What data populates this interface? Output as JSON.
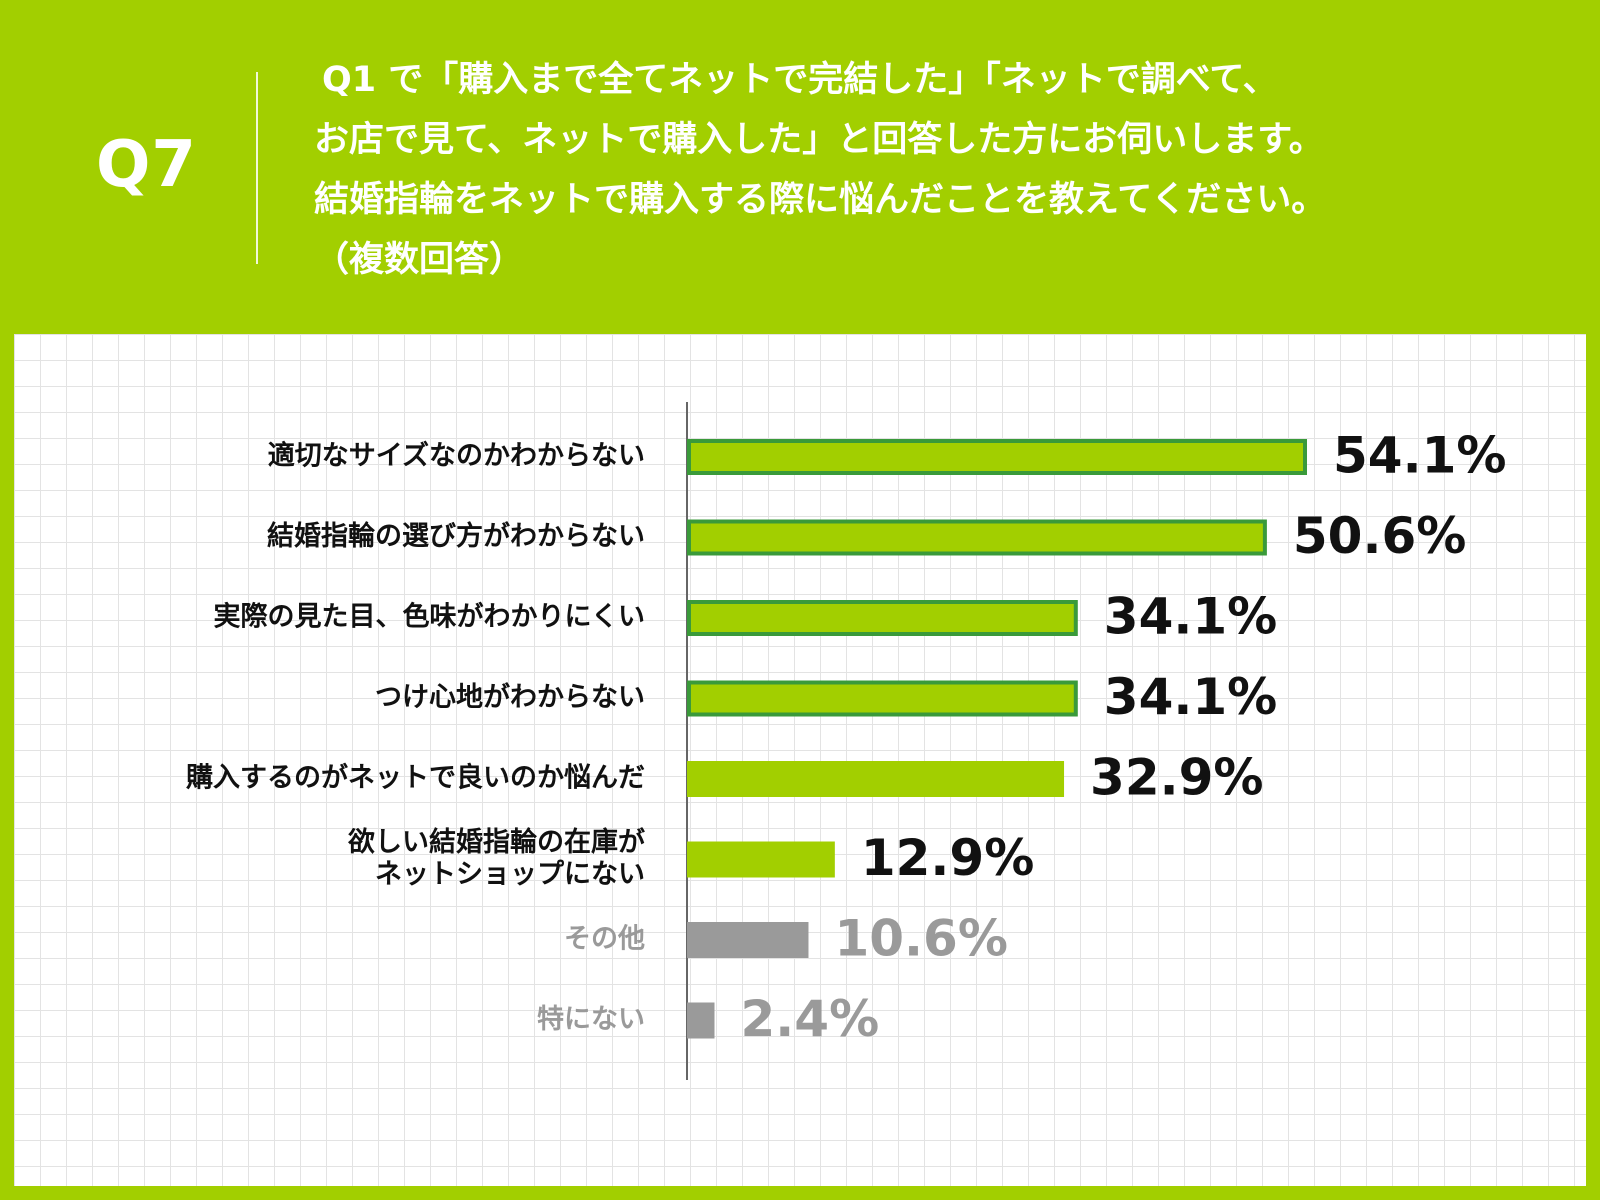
{
  "header": {
    "q_label": "Q7",
    "question_lines": [
      "Q1 で「購入まで全てネットで完結した」「ネットで調べて、",
      "お店で見て、ネットで購入した」と回答した方にお伺いします。",
      "結婚指輪をネットで購入する際に悩んだことを教えてください。",
      "（複数回答）"
    ]
  },
  "colors": {
    "accent": "#a2cf00",
    "bar_border": "#3a9a3a",
    "other": "#9a9a9a",
    "text": "#111111"
  },
  "chart_data": {
    "type": "bar",
    "orientation": "horizontal",
    "unit": "%",
    "xlim": [
      0,
      54.1
    ],
    "categories": [
      [
        "適切なサイズなのかわからない"
      ],
      [
        "結婚指輪の選び方がわからない"
      ],
      [
        "実際の見た目、色味がわかりにくい"
      ],
      [
        "つけ心地がわからない"
      ],
      [
        "購入するのがネットで良いのか悩んだ"
      ],
      [
        "欲しい結婚指輪の在庫が",
        "ネットショップにない"
      ],
      [
        "その他"
      ],
      [
        "特にない"
      ]
    ],
    "values": [
      54.1,
      50.6,
      34.1,
      34.1,
      32.9,
      12.9,
      10.6,
      2.4
    ],
    "value_labels": [
      "54.1%",
      "50.6%",
      "34.1%",
      "34.1%",
      "32.9%",
      "12.9%",
      "10.6%",
      "2.4%"
    ],
    "styles": [
      "outlined",
      "outlined",
      "outlined",
      "outlined",
      "plain",
      "plain",
      "gray",
      "gray"
    ]
  }
}
